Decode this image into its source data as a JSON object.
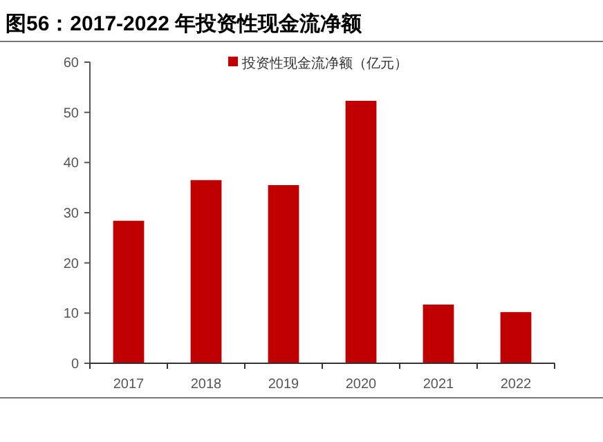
{
  "chart_data": {
    "type": "bar",
    "title": "图56：2017-2022 年投资性现金流净额",
    "categories": [
      "2017",
      "2018",
      "2019",
      "2020",
      "2021",
      "2022"
    ],
    "series": [
      {
        "name": "投资性现金流净额（亿元）",
        "color": "#c00000",
        "values": [
          28.4,
          36.5,
          35.5,
          52.3,
          11.7,
          10.2
        ]
      }
    ],
    "ylim": [
      0,
      60
    ],
    "yticks": [
      0,
      10,
      20,
      30,
      40,
      50,
      60
    ],
    "grid": false,
    "legend": "top"
  }
}
